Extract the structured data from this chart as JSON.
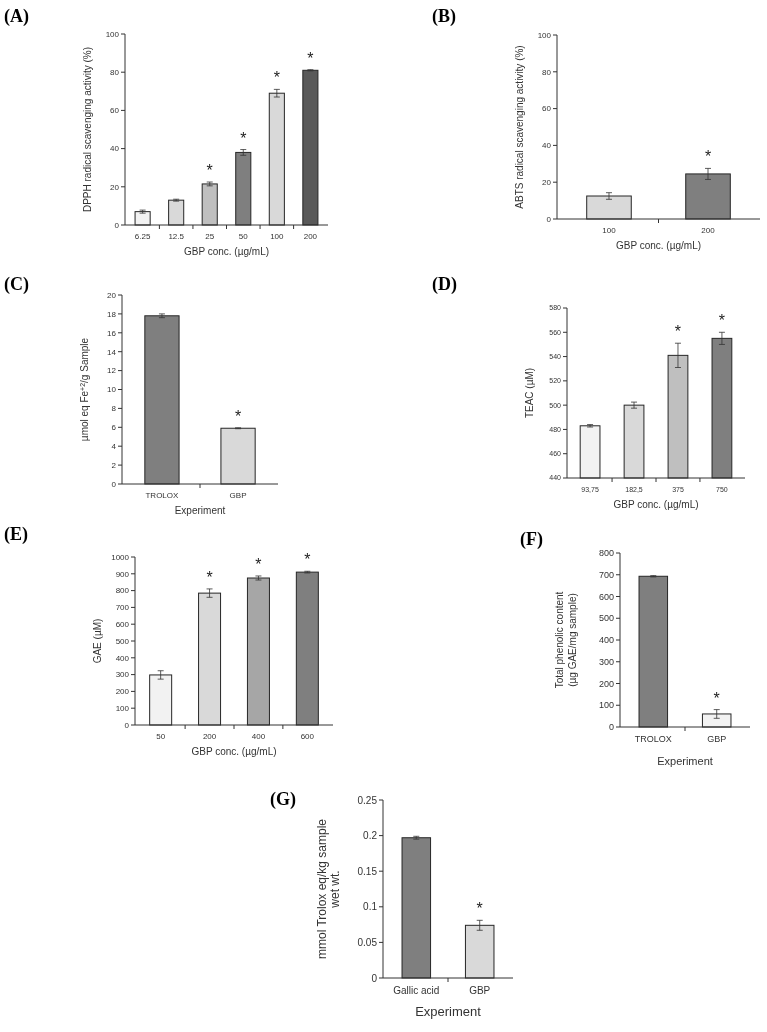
{
  "chart_data": [
    {
      "type": "bar",
      "title": "(A)",
      "xlabel": "GBP conc. (µg/mL)",
      "ylabel": "DPPH radical scavenging activity (%)",
      "categories": [
        "6.25",
        "12.5",
        "25",
        "50",
        "100",
        "200"
      ],
      "values": [
        7,
        13,
        21.5,
        38,
        69,
        81
      ],
      "errors": [
        0.8,
        0.5,
        1,
        1.5,
        2,
        0.3
      ],
      "colors": [
        "#f2f2f2",
        "#d9d9d9",
        "#bfbfbf",
        "#7f7f7f",
        "#d9d9d9",
        "#595959"
      ],
      "ylim": [
        0,
        100
      ],
      "yticks": [
        0,
        20,
        40,
        60,
        80,
        100
      ],
      "annotations": [
        {
          "text": "*",
          "x": "25",
          "y": 21.5
        },
        {
          "text": "*",
          "x": "50",
          "y": 38
        },
        {
          "text": "*",
          "x": "100",
          "y": 69
        },
        {
          "text": "*",
          "x": "200",
          "y": 81
        }
      ]
    },
    {
      "type": "bar",
      "title": "(B)",
      "xlabel": "GBP conc. (µg/mL)",
      "ylabel": "ABTS radical scavenging activity (%)",
      "categories": [
        "100",
        "200"
      ],
      "values": [
        12.5,
        24.5
      ],
      "errors": [
        1.8,
        3
      ],
      "colors": [
        "#d9d9d9",
        "#7f7f7f"
      ],
      "ylim": [
        0,
        100
      ],
      "yticks": [
        0,
        20,
        40,
        60,
        80,
        100
      ],
      "annotations": [
        {
          "text": "*",
          "x": "200",
          "y": 24.5
        }
      ]
    },
    {
      "type": "bar",
      "title": "(C)",
      "xlabel": "Experiment",
      "ylabel": "µmol eq Fe$^{+2}$/g Sample",
      "categories": [
        "TROLOX",
        "GBP"
      ],
      "values": [
        17.8,
        5.9
      ],
      "errors": [
        0.2,
        0.05
      ],
      "colors": [
        "#7f7f7f",
        "#d9d9d9"
      ],
      "ylim": [
        0,
        20
      ],
      "yticks": [
        0,
        2,
        4,
        6,
        8,
        10,
        12,
        14,
        16,
        18,
        20
      ],
      "annotations": [
        {
          "text": "*",
          "x": "GBP",
          "y": 5.9
        }
      ]
    },
    {
      "type": "bar",
      "title": "(D)",
      "xlabel": "GBP conc. (µg/mL)",
      "ylabel": "TEAC (µM)",
      "categories": [
        "93,75",
        "182,5",
        "375",
        "750"
      ],
      "values": [
        483,
        500,
        541,
        555
      ],
      "errors": [
        1,
        2.5,
        10,
        5
      ],
      "colors": [
        "#f2f2f2",
        "#d9d9d9",
        "#bfbfbf",
        "#7f7f7f"
      ],
      "ylim": [
        440,
        580
      ],
      "yticks": [
        440,
        460,
        480,
        500,
        520,
        540,
        560,
        580
      ],
      "annotations": [
        {
          "text": "*",
          "x": "375",
          "y": 541
        },
        {
          "text": "*",
          "x": "750",
          "y": 555
        }
      ]
    },
    {
      "type": "bar",
      "title": "(E)",
      "xlabel": "GBP conc. (µg/mL)",
      "ylabel": "GAE (µM)",
      "categories": [
        "50",
        "200",
        "400",
        "600"
      ],
      "values": [
        298,
        785,
        875,
        910
      ],
      "errors": [
        25,
        25,
        12,
        5
      ],
      "colors": [
        "#f2f2f2",
        "#d9d9d9",
        "#a6a6a6",
        "#7f7f7f"
      ],
      "ylim": [
        0,
        1000
      ],
      "yticks": [
        0,
        100,
        200,
        300,
        400,
        500,
        600,
        700,
        800,
        900,
        1000
      ],
      "annotations": [
        {
          "text": "*",
          "x": "200",
          "y": 785
        },
        {
          "text": "*",
          "x": "400",
          "y": 875
        },
        {
          "text": "*",
          "x": "600",
          "y": 910
        }
      ]
    },
    {
      "type": "bar",
      "title": "(F)",
      "xlabel": "Experiment",
      "ylabel": "Total phenolic content\n(µg GAE/mg sample)",
      "categories": [
        "TROLOX",
        "GBP"
      ],
      "values": [
        693,
        60
      ],
      "errors": [
        3,
        20
      ],
      "colors": [
        "#7f7f7f",
        "#f2f2f2"
      ],
      "ylim": [
        0,
        800
      ],
      "yticks": [
        0,
        100,
        200,
        300,
        400,
        500,
        600,
        700,
        800
      ],
      "annotations": [
        {
          "text": "*",
          "x": "GBP",
          "y": 60
        }
      ]
    },
    {
      "type": "bar",
      "title": "(G)",
      "xlabel": "Experiment",
      "ylabel": "mmol Trolox eq/kg sample\nwet wt.",
      "categories": [
        "Gallic acid",
        "GBP"
      ],
      "values": [
        0.197,
        0.074
      ],
      "errors": [
        0.002,
        0.007
      ],
      "colors": [
        "#7f7f7f",
        "#d9d9d9"
      ],
      "ylim": [
        0,
        0.25
      ],
      "yticks": [
        0,
        0.05,
        0.1,
        0.15,
        0.2,
        0.25
      ],
      "annotations": [
        {
          "text": "*",
          "x": "GBP",
          "y": 0.074
        }
      ]
    }
  ]
}
